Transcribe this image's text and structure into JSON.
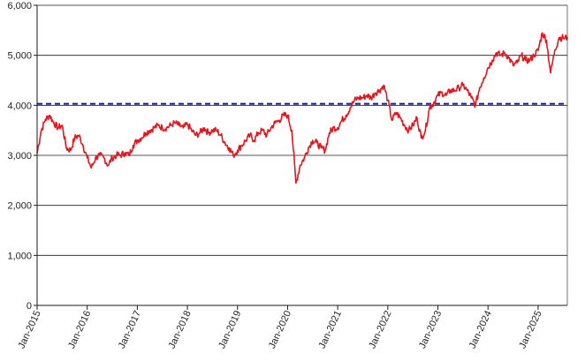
{
  "chart_data": {
    "type": "line",
    "title": "",
    "xlabel": "",
    "ylabel": "",
    "ylim": [
      0,
      6000
    ],
    "xlim": [
      "2015-01",
      "2025-08"
    ],
    "grid": "horizontal",
    "legend": "none",
    "y_ticks": [
      "0",
      "1,000",
      "2,000",
      "3,000",
      "4,000",
      "5,000",
      "6,000"
    ],
    "y_tick_values": [
      0,
      1000,
      2000,
      3000,
      4000,
      5000,
      6000
    ],
    "x_ticks": [
      "Jan-2015",
      "Jan-2016",
      "Jan-2017",
      "Jan-2018",
      "Jan-2019",
      "Jan-2020",
      "Jan-2021",
      "Jan-2022",
      "Jan-2023",
      "Jan-2024",
      "Jan-2025"
    ],
    "x_tick_values": [
      "2015-01",
      "2016-01",
      "2017-01",
      "2018-01",
      "2019-01",
      "2020-01",
      "2021-01",
      "2022-01",
      "2023-01",
      "2024-01",
      "2025-01"
    ],
    "reference_line": {
      "value": 4030,
      "color": "#1a1a8c",
      "style": "dashed"
    },
    "series": [
      {
        "color": "#e8141c",
        "x": [
          "2015-01",
          "2015-02",
          "2015-03",
          "2015-04",
          "2015-05",
          "2015-06",
          "2015-07",
          "2015-08",
          "2015-09",
          "2015-10",
          "2015-11",
          "2015-12",
          "2016-01",
          "2016-02",
          "2016-03",
          "2016-04",
          "2016-05",
          "2016-06",
          "2016-07",
          "2016-08",
          "2016-09",
          "2016-10",
          "2016-11",
          "2016-12",
          "2017-01",
          "2017-02",
          "2017-03",
          "2017-04",
          "2017-05",
          "2017-06",
          "2017-07",
          "2017-08",
          "2017-09",
          "2017-10",
          "2017-11",
          "2017-12",
          "2018-01",
          "2018-02",
          "2018-03",
          "2018-04",
          "2018-05",
          "2018-06",
          "2018-07",
          "2018-08",
          "2018-09",
          "2018-10",
          "2018-11",
          "2018-12",
          "2019-01",
          "2019-02",
          "2019-03",
          "2019-04",
          "2019-05",
          "2019-06",
          "2019-07",
          "2019-08",
          "2019-09",
          "2019-10",
          "2019-11",
          "2019-12",
          "2020-01",
          "2020-02",
          "2020-03",
          "2020-04",
          "2020-05",
          "2020-06",
          "2020-07",
          "2020-08",
          "2020-09",
          "2020-10",
          "2020-11",
          "2020-12",
          "2021-01",
          "2021-02",
          "2021-03",
          "2021-04",
          "2021-05",
          "2021-06",
          "2021-07",
          "2021-08",
          "2021-09",
          "2021-10",
          "2021-11",
          "2021-12",
          "2022-01",
          "2022-02",
          "2022-03",
          "2022-04",
          "2022-05",
          "2022-06",
          "2022-07",
          "2022-08",
          "2022-09",
          "2022-10",
          "2022-11",
          "2022-12",
          "2023-01",
          "2023-02",
          "2023-03",
          "2023-04",
          "2023-05",
          "2023-06",
          "2023-07",
          "2023-08",
          "2023-09",
          "2023-10",
          "2023-11",
          "2023-12",
          "2024-01",
          "2024-02",
          "2024-03",
          "2024-04",
          "2024-05",
          "2024-06",
          "2024-07",
          "2024-08",
          "2024-09",
          "2024-10",
          "2024-11",
          "2024-12",
          "2025-01",
          "2025-02",
          "2025-03",
          "2025-04",
          "2025-05",
          "2025-06",
          "2025-07",
          "2025-08"
        ],
        "values": [
          3050,
          3500,
          3720,
          3800,
          3650,
          3550,
          3600,
          3150,
          3100,
          3350,
          3400,
          3200,
          2950,
          2750,
          2950,
          3000,
          2950,
          2800,
          2950,
          3000,
          3000,
          3050,
          3000,
          3200,
          3300,
          3350,
          3450,
          3500,
          3550,
          3600,
          3550,
          3550,
          3600,
          3650,
          3600,
          3550,
          3620,
          3500,
          3400,
          3450,
          3550,
          3450,
          3500,
          3500,
          3400,
          3250,
          3150,
          3000,
          3100,
          3200,
          3300,
          3400,
          3300,
          3450,
          3500,
          3400,
          3550,
          3650,
          3700,
          3800,
          3800,
          3500,
          2450,
          2800,
          2950,
          3150,
          3300,
          3250,
          3150,
          3100,
          3450,
          3550,
          3550,
          3700,
          3800,
          3950,
          4100,
          4150,
          4150,
          4200,
          4150,
          4250,
          4300,
          4400,
          4100,
          3700,
          3850,
          3750,
          3600,
          3500,
          3600,
          3750,
          3350,
          3500,
          3950,
          4050,
          4200,
          4250,
          4200,
          4300,
          4300,
          4350,
          4400,
          4300,
          4150,
          4000,
          4350,
          4550,
          4750,
          4900,
          5050,
          5000,
          5050,
          4950,
          4800,
          4850,
          5000,
          4900,
          4900,
          5000,
          5100,
          5450,
          5300,
          4650,
          5100,
          5350,
          5350,
          5350
        ]
      }
    ]
  }
}
